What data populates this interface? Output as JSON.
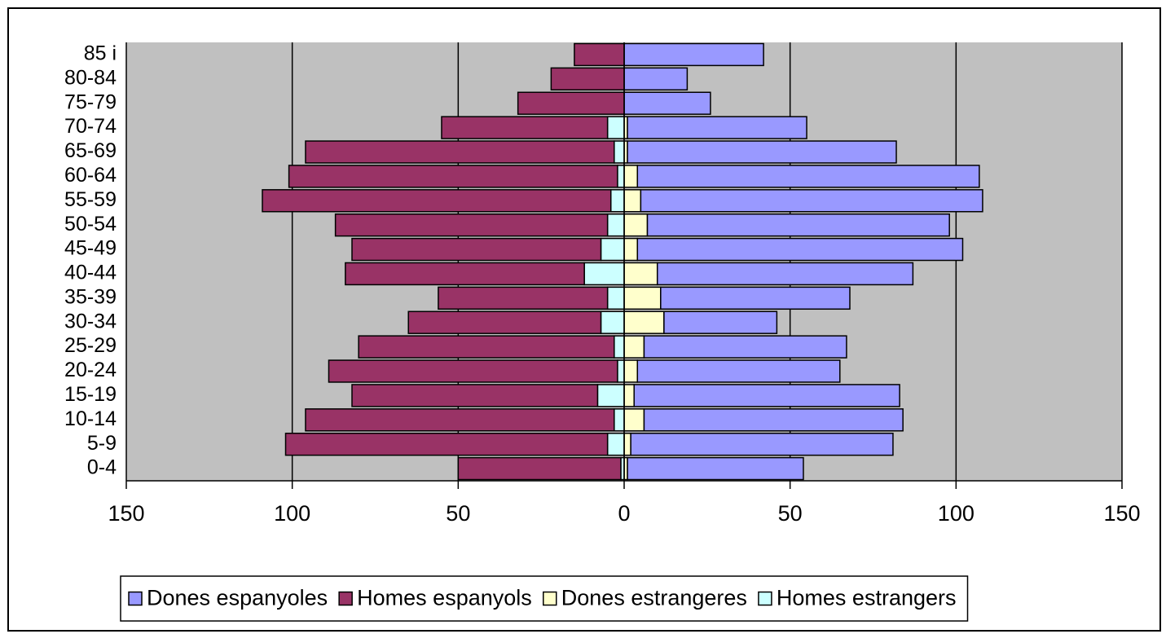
{
  "chart_data": {
    "type": "bar",
    "orientation": "horizontal",
    "stacked": true,
    "categories": [
      "0-4",
      "5-9",
      "10-14",
      "15-19",
      "20-24",
      "25-29",
      "30-34",
      "35-39",
      "40-44",
      "45-49",
      "50-54",
      "55-59",
      "60-64",
      "65-69",
      "70-74",
      "75-79",
      "80-84",
      "85 i"
    ],
    "series": [
      {
        "name": "Dones espanyoles",
        "color": "#9999ff",
        "values": [
          53,
          79,
          78,
          80,
          61,
          61,
          34,
          57,
          77,
          98,
          91,
          103,
          103,
          81,
          54,
          26,
          19,
          42
        ]
      },
      {
        "name": "Homes espanyols",
        "color": "#993366",
        "values": [
          -49,
          -97,
          -93,
          -74,
          -87,
          -77,
          -58,
          -51,
          -72,
          -75,
          -82,
          -105,
          -99,
          -93,
          -50,
          -32,
          -22,
          -15
        ]
      },
      {
        "name": "Dones estrangeres",
        "color": "#ffffcc",
        "values": [
          1,
          2,
          6,
          3,
          4,
          6,
          12,
          11,
          10,
          4,
          7,
          5,
          4,
          1,
          1,
          0,
          0,
          0
        ]
      },
      {
        "name": "Homes estrangers",
        "color": "#ccffff",
        "values": [
          -1,
          -5,
          -3,
          -8,
          -2,
          -3,
          -7,
          -5,
          -12,
          -7,
          -5,
          -4,
          -2,
          -3,
          -5,
          0,
          0,
          0
        ]
      }
    ],
    "stack_order": [
      "Dones estrangeres",
      "Dones espanyoles",
      "Homes estrangers",
      "Homes espanyols"
    ],
    "xlim": [
      -150,
      150
    ],
    "xticks": [
      {
        "value": -150,
        "label": "150"
      },
      {
        "value": -100,
        "label": "100"
      },
      {
        "value": -50,
        "label": "50"
      },
      0,
      50,
      100,
      {
        "value": 150,
        "label": "150"
      }
    ],
    "grid": true,
    "legend": "bottom",
    "plot_background": "#c0c0c0"
  }
}
